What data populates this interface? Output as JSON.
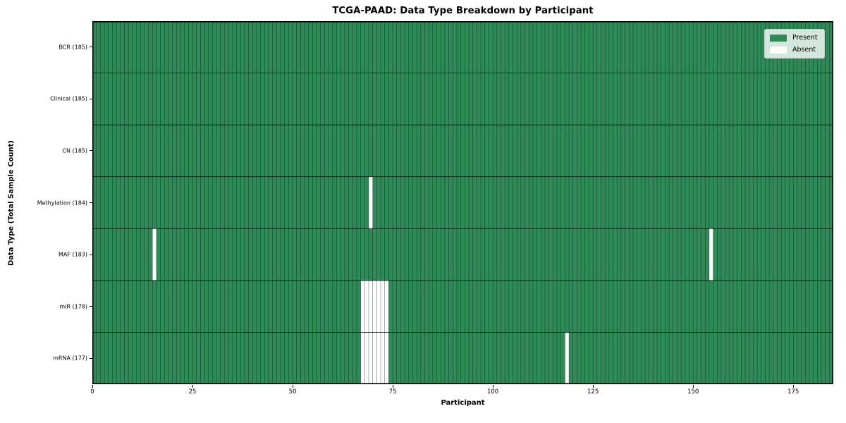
{
  "chart_data": {
    "type": "heatmap",
    "title": "TCGA-PAAD: Data Type Breakdown by Participant",
    "xlabel": "Participant",
    "ylabel": "Data Type (Total Sample Count)",
    "xlim": [
      0,
      185
    ],
    "n_participants": 185,
    "x_ticks": [
      0,
      25,
      50,
      75,
      100,
      125,
      150,
      175
    ],
    "grid": true,
    "legend_position": "upper right",
    "legend": [
      {
        "label": "Present",
        "color": "#2e8b57"
      },
      {
        "label": "Absent",
        "color": "#ffffff"
      }
    ],
    "rows": [
      {
        "label": "BCR (185)",
        "data_type": "BCR",
        "total": 185,
        "absent_participants": []
      },
      {
        "label": "Clinical (185)",
        "data_type": "Clinical",
        "total": 185,
        "absent_participants": []
      },
      {
        "label": "CN (185)",
        "data_type": "CN",
        "total": 185,
        "absent_participants": []
      },
      {
        "label": "Methylation (184)",
        "data_type": "Methylation",
        "total": 184,
        "absent_participants": [
          69
        ]
      },
      {
        "label": "MAF (183)",
        "data_type": "MAF",
        "total": 183,
        "absent_participants": [
          15,
          154
        ]
      },
      {
        "label": "miR (178)",
        "data_type": "miR",
        "total": 178,
        "absent_participants": [
          67,
          68,
          69,
          70,
          71,
          72,
          73
        ]
      },
      {
        "label": "mRNA (177)",
        "data_type": "mRNA",
        "total": 177,
        "absent_participants": [
          67,
          68,
          69,
          70,
          71,
          72,
          73,
          118
        ]
      }
    ],
    "colors": {
      "present": "#2e8b57",
      "absent": "#ffffff",
      "grid_line": "#000000",
      "spine": "#000000",
      "background": "#ffffff"
    }
  }
}
